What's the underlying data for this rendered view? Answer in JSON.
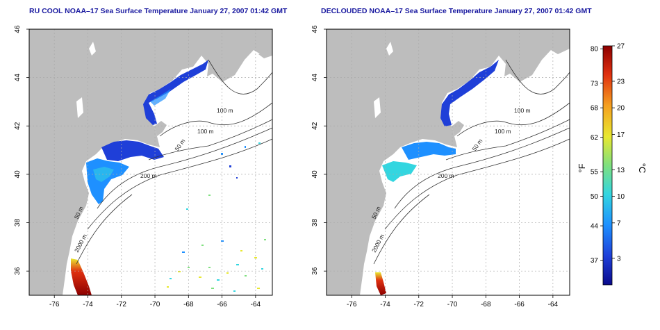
{
  "panels": [
    {
      "title": "RU COOL NOAA–17 Sea Surface Temperature January 27, 2007 01:42 GMT",
      "variant": "raw"
    },
    {
      "title": "DECLOUDED NOAA–17 Sea Surface Temperature January 27, 2007 01:42 GMT",
      "variant": "declouded"
    }
  ],
  "axes": {
    "x_ticks": [
      "-76",
      "-74",
      "-72",
      "-70",
      "-68",
      "-66",
      "-64"
    ],
    "x_values": [
      -76,
      -74,
      -72,
      -70,
      -68,
      -66,
      -64
    ],
    "y_ticks": [
      "36",
      "38",
      "40",
      "42",
      "44",
      "46"
    ],
    "y_values": [
      36,
      38,
      40,
      42,
      44,
      46
    ],
    "lon_range": [
      -77.5,
      -63
    ],
    "lat_range": [
      35,
      46
    ],
    "grid": "dotted"
  },
  "contour_labels": [
    "100 m",
    "100 m",
    "50 m",
    "200 m",
    "50 m",
    "2000 m"
  ],
  "colorbar": {
    "fahrenheit_unit": "°F",
    "celsius_unit": "°C",
    "fahrenheit_ticks": [
      "80",
      "73",
      "68",
      "62",
      "55",
      "50",
      "44",
      "37"
    ],
    "fahrenheit_values": [
      80,
      73,
      68,
      62,
      55,
      50,
      44,
      37
    ],
    "celsius_ticks": [
      "27",
      "23",
      "20",
      "17",
      "13",
      "10",
      "7",
      "3"
    ],
    "celsius_values": [
      27,
      23,
      20,
      17,
      13,
      10,
      7,
      3
    ],
    "range_celsius": [
      0,
      27
    ],
    "colors": [
      "#0a0a8c",
      "#1f3fd8",
      "#1e90ff",
      "#33d6e0",
      "#7fe07f",
      "#e8e830",
      "#f5a020",
      "#e03010",
      "#8c0000"
    ]
  },
  "colors": {
    "land": "#bdbdbd",
    "ocean": "#ffffff",
    "title": "#1a1aa0",
    "contour": "#333333"
  }
}
